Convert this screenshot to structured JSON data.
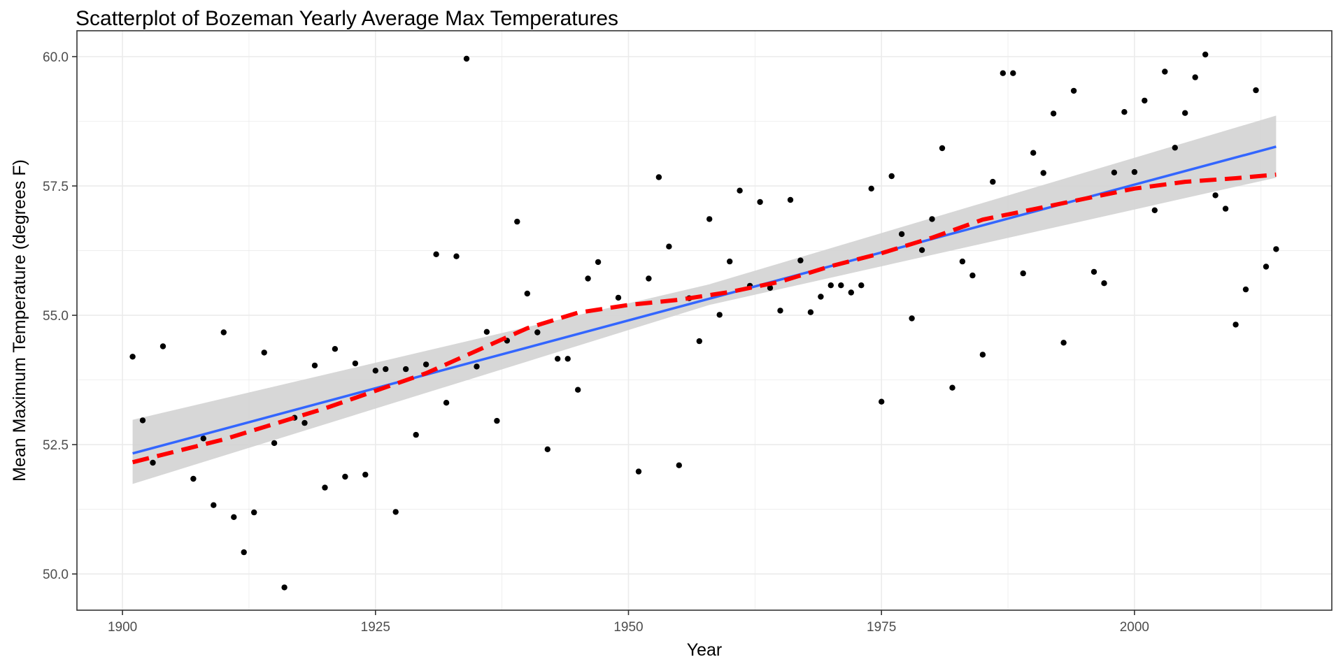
{
  "chart_data": {
    "type": "scatter",
    "title": "Scatterplot of Bozeman Yearly Average Max Temperatures",
    "xlabel": "Year",
    "ylabel": "Mean Maximum Temperature (degrees F)",
    "xlim": [
      1895.5,
      2019.5
    ],
    "ylim": [
      49.3,
      60.5
    ],
    "x_ticks": [
      1900,
      1925,
      1950,
      1975,
      2000
    ],
    "y_ticks": [
      50.0,
      52.5,
      55.0,
      57.5,
      60.0
    ],
    "x_tick_labels": [
      "1900",
      "1925",
      "1950",
      "1975",
      "2000"
    ],
    "y_tick_labels": [
      "50.0",
      "52.5",
      "55.0",
      "57.5",
      "60.0"
    ],
    "grid": true,
    "legend": "none",
    "colors": {
      "points": "#000000",
      "linear_fit": "#3366FF",
      "confidence_band": "#D3D3D3",
      "smooth_fit": "#FF0000",
      "panel_border": "#333333",
      "grid": "#EBEBEB"
    },
    "points": [
      [
        1901,
        54.2
      ],
      [
        1902,
        52.97
      ],
      [
        1903,
        52.15
      ],
      [
        1904,
        54.4
      ],
      [
        1907,
        51.84
      ],
      [
        1908,
        52.62
      ],
      [
        1909,
        51.33
      ],
      [
        1910,
        54.67
      ],
      [
        1911,
        51.1
      ],
      [
        1912,
        50.42
      ],
      [
        1913,
        51.19
      ],
      [
        1914,
        54.28
      ],
      [
        1915,
        52.53
      ],
      [
        1916,
        49.74
      ],
      [
        1917,
        53.02
      ],
      [
        1918,
        52.92
      ],
      [
        1919,
        54.03
      ],
      [
        1920,
        51.67
      ],
      [
        1921,
        54.35
      ],
      [
        1922,
        51.88
      ],
      [
        1923,
        54.07
      ],
      [
        1924,
        51.92
      ],
      [
        1925,
        53.93
      ],
      [
        1926,
        53.96
      ],
      [
        1927,
        51.2
      ],
      [
        1928,
        53.96
      ],
      [
        1929,
        52.69
      ],
      [
        1930,
        54.05
      ],
      [
        1931,
        56.18
      ],
      [
        1932,
        53.31
      ],
      [
        1933,
        56.14
      ],
      [
        1934,
        59.96
      ],
      [
        1935,
        54.01
      ],
      [
        1936,
        54.68
      ],
      [
        1937,
        52.96
      ],
      [
        1938,
        54.51
      ],
      [
        1939,
        56.81
      ],
      [
        1940,
        55.42
      ],
      [
        1941,
        54.67
      ],
      [
        1942,
        52.41
      ],
      [
        1943,
        54.16
      ],
      [
        1944,
        54.16
      ],
      [
        1945,
        53.56
      ],
      [
        1946,
        55.71
      ],
      [
        1947,
        56.03
      ],
      [
        1949,
        55.34
      ],
      [
        1951,
        51.98
      ],
      [
        1952,
        55.71
      ],
      [
        1953,
        57.67
      ],
      [
        1954,
        56.33
      ],
      [
        1955,
        52.1
      ],
      [
        1956,
        55.33
      ],
      [
        1957,
        54.5
      ],
      [
        1958,
        56.86
      ],
      [
        1959,
        55.01
      ],
      [
        1960,
        56.04
      ],
      [
        1961,
        57.41
      ],
      [
        1962,
        55.57
      ],
      [
        1963,
        57.19
      ],
      [
        1964,
        55.53
      ],
      [
        1965,
        55.09
      ],
      [
        1966,
        57.23
      ],
      [
        1967,
        56.06
      ],
      [
        1968,
        55.06
      ],
      [
        1969,
        55.36
      ],
      [
        1970,
        55.58
      ],
      [
        1971,
        55.58
      ],
      [
        1972,
        55.44
      ],
      [
        1973,
        55.58
      ],
      [
        1974,
        57.45
      ],
      [
        1975,
        53.33
      ],
      [
        1976,
        57.69
      ],
      [
        1977,
        56.57
      ],
      [
        1978,
        54.94
      ],
      [
        1979,
        56.26
      ],
      [
        1980,
        56.86
      ],
      [
        1981,
        58.23
      ],
      [
        1982,
        53.6
      ],
      [
        1983,
        56.04
      ],
      [
        1984,
        55.77
      ],
      [
        1985,
        54.24
      ],
      [
        1986,
        57.58
      ],
      [
        1987,
        59.68
      ],
      [
        1988,
        59.68
      ],
      [
        1989,
        55.81
      ],
      [
        1990,
        58.14
      ],
      [
        1991,
        57.75
      ],
      [
        1992,
        58.9
      ],
      [
        1993,
        54.47
      ],
      [
        1994,
        59.34
      ],
      [
        1996,
        55.84
      ],
      [
        1997,
        55.62
      ],
      [
        1998,
        57.76
      ],
      [
        1999,
        58.93
      ],
      [
        2000,
        57.77
      ],
      [
        2001,
        59.15
      ],
      [
        2002,
        57.03
      ],
      [
        2003,
        59.71
      ],
      [
        2004,
        58.24
      ],
      [
        2005,
        58.91
      ],
      [
        2006,
        59.6
      ],
      [
        2007,
        60.04
      ],
      [
        2008,
        57.32
      ],
      [
        2009,
        57.06
      ],
      [
        2010,
        54.82
      ],
      [
        2011,
        55.5
      ],
      [
        2012,
        59.35
      ],
      [
        2013,
        55.94
      ],
      [
        2014,
        56.28
      ]
    ],
    "linear_fit": {
      "x": [
        1901,
        2014
      ],
      "y": [
        52.33,
        58.26
      ]
    },
    "confidence_band": {
      "x": [
        1901,
        1958,
        2014
      ],
      "upper": [
        52.98,
        55.6,
        58.86
      ],
      "lower": [
        51.74,
        55.2,
        57.66
      ]
    },
    "smooth_fit": {
      "x": [
        1901,
        1910,
        1920,
        1930,
        1940,
        1945,
        1950,
        1955,
        1960,
        1965,
        1970,
        1975,
        1980,
        1985,
        1990,
        1995,
        2000,
        2005,
        2010,
        2014
      ],
      "y": [
        52.16,
        52.6,
        53.2,
        53.88,
        54.75,
        55.05,
        55.2,
        55.3,
        55.45,
        55.65,
        55.95,
        56.2,
        56.5,
        56.85,
        57.05,
        57.25,
        57.45,
        57.58,
        57.65,
        57.72
      ]
    }
  }
}
